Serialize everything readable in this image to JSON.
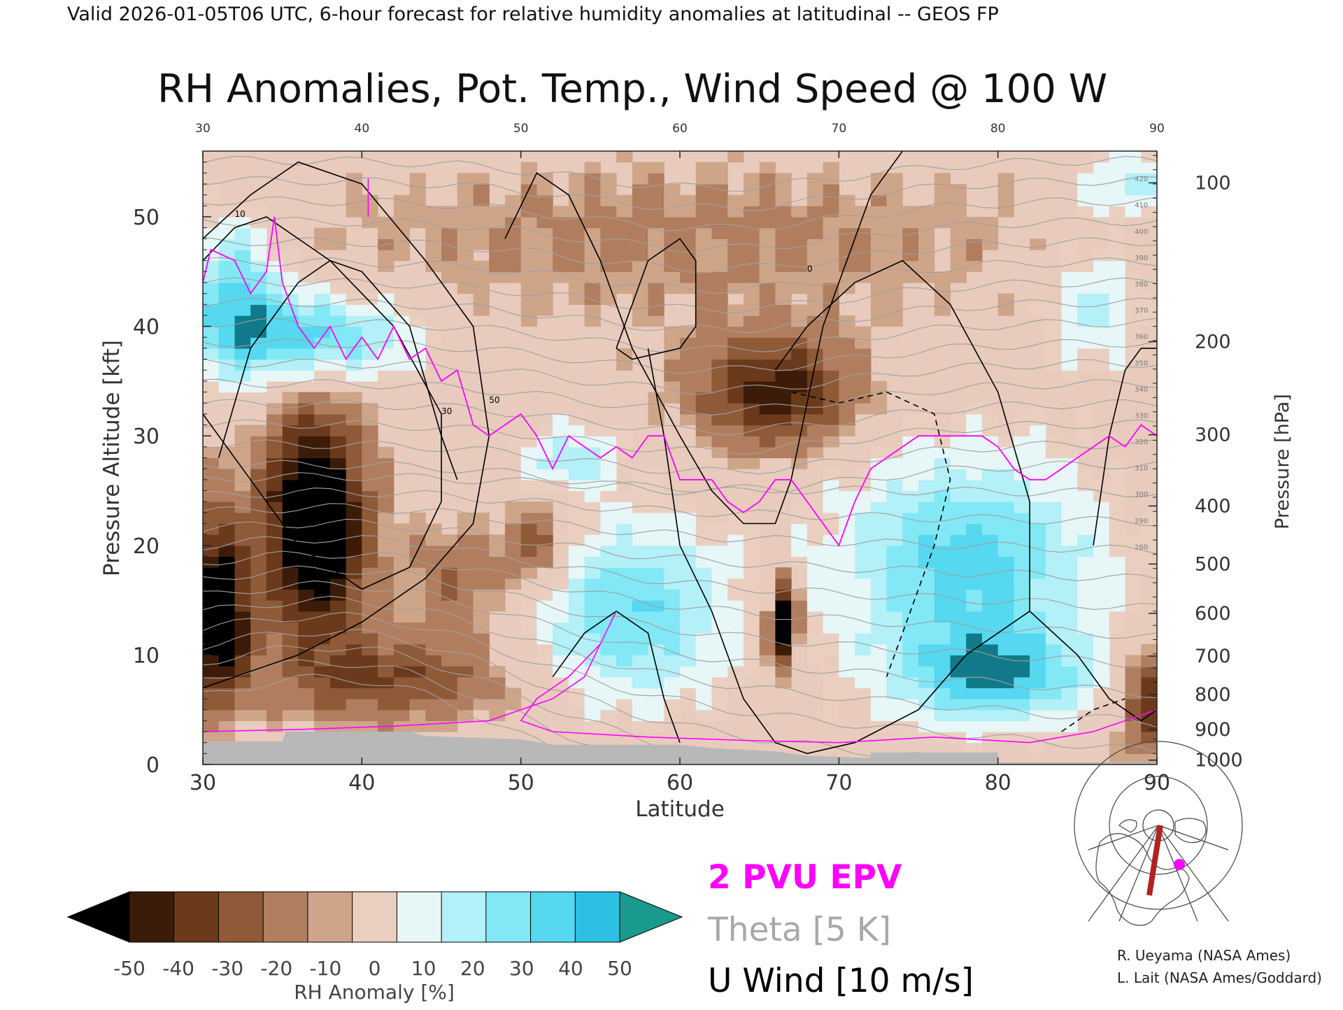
{
  "header": {
    "valid_line": "Valid 2026-01-05T06 UTC, 6-hour forecast for relative humidity anomalies at latitudinal -- GEOS FP",
    "title": "RH Anomalies, Pot. Temp., Wind Speed @ 100 W"
  },
  "chart_data": {
    "type": "heatmap",
    "xlabel": "Latitude",
    "ylabel_left": "Pressure Altitude [kft]",
    "ylabel_right": "Pressure [hPa]",
    "xlim": [
      30,
      90
    ],
    "ylim": [
      0,
      56
    ],
    "x_ticks": [
      "30",
      "40",
      "50",
      "60",
      "70",
      "80",
      "90"
    ],
    "x_ticks_top": [
      "30",
      "40",
      "50",
      "60",
      "70",
      "80",
      "90"
    ],
    "y_ticks": [
      "0",
      "10",
      "20",
      "30",
      "40",
      "50"
    ],
    "pressure_ticks": [
      {
        "label": "100",
        "kft": 53.1
      },
      {
        "label": "200",
        "kft": 38.6
      },
      {
        "label": "300",
        "kft": 30.1
      },
      {
        "label": "400",
        "kft": 23.6
      },
      {
        "label": "500",
        "kft": 18.3
      },
      {
        "label": "600",
        "kft": 13.8
      },
      {
        "label": "700",
        "kft": 9.9
      },
      {
        "label": "800",
        "kft": 6.4
      },
      {
        "label": "900",
        "kft": 3.2
      },
      {
        "label": "1000",
        "kft": 0.4
      }
    ],
    "colorbar": {
      "label": "RH Anomaly [%]",
      "ticks": [
        "-50",
        "-40",
        "-30",
        "-20",
        "-10",
        "0",
        "10",
        "20",
        "30",
        "40",
        "50"
      ],
      "colors": [
        "#000000",
        "#3c1c08",
        "#6b3a1c",
        "#8e5a38",
        "#b07e5e",
        "#cfa58a",
        "#eacfc0",
        "#e7f6f6",
        "#b3f0f7",
        "#82e8f6",
        "#55d8f0",
        "#2dc0e4",
        "#1298c0",
        "#107a8a",
        "#1a9a8c"
      ]
    },
    "legend": [
      {
        "label": "2 PVU EPV",
        "color": "#ff00ff"
      },
      {
        "label": "Theta [5 K]",
        "color": "#a8a8a8"
      },
      {
        "label": "U Wind [10 m/s]",
        "color": "#000000"
      }
    ],
    "theta_labels": [
      "420",
      "410",
      "400",
      "390",
      "380",
      "370",
      "360",
      "350",
      "340",
      "330",
      "320",
      "310",
      "300",
      "290",
      "280"
    ],
    "wind_labels": [
      "10",
      "30",
      "50",
      "0"
    ],
    "colors": {
      "epv": "#ff00ff",
      "theta": "#a0a0a0",
      "wind": "#000000",
      "terrain": "#b8b8b8"
    }
  },
  "map": {
    "icon": "north-america-polar-map-icon"
  },
  "credits": {
    "line1": "R. Ueyama (NASA Ames)",
    "line2": "L. Lait (NASA Ames/Goddard)"
  }
}
